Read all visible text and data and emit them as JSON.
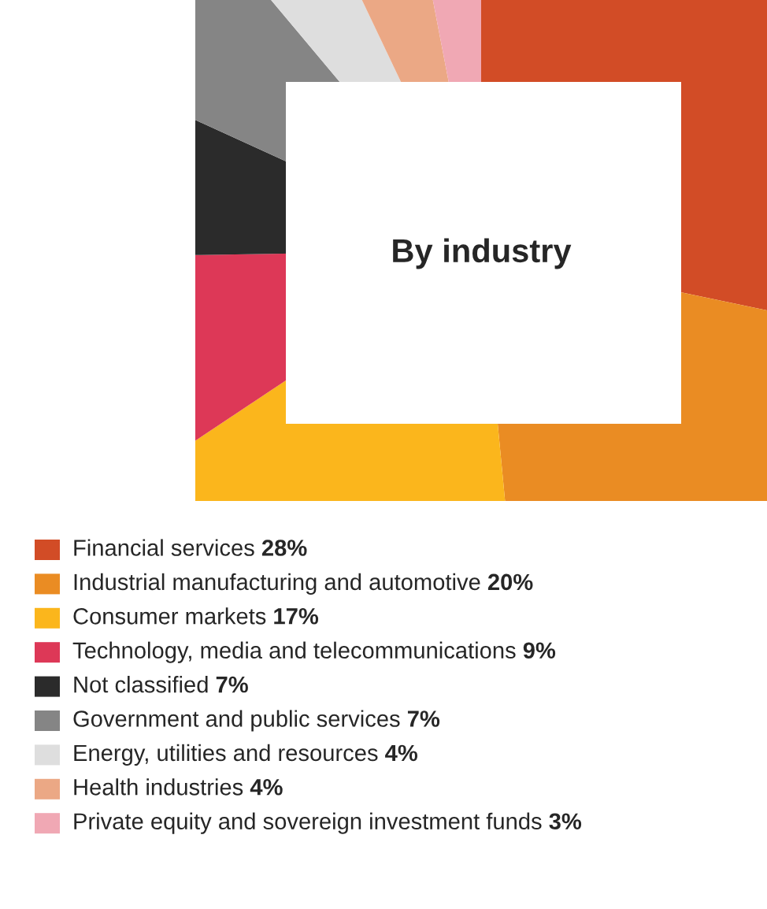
{
  "chart_data": {
    "type": "pie",
    "title": "By industry",
    "categories": [
      "Financial services",
      "Industrial manufacturing and automotive",
      "Consumer markets",
      "Technology, media and telecommunications",
      "Not classified",
      "Government and public services",
      "Energy, utilities and resources",
      "Health industries",
      "Private equity and sovereign investment funds"
    ],
    "values": [
      28,
      20,
      17,
      9,
      7,
      7,
      4,
      4,
      3
    ],
    "value_labels": [
      "28%",
      "20%",
      "17%",
      "9%",
      "7%",
      "7%",
      "4%",
      "4%",
      "3%"
    ],
    "colors": [
      "#d24c26",
      "#ea8c23",
      "#fbb61c",
      "#dd3857",
      "#2b2b2b",
      "#858585",
      "#dedede",
      "#eba885",
      "#f0a8b4"
    ],
    "legend": "bottom"
  }
}
